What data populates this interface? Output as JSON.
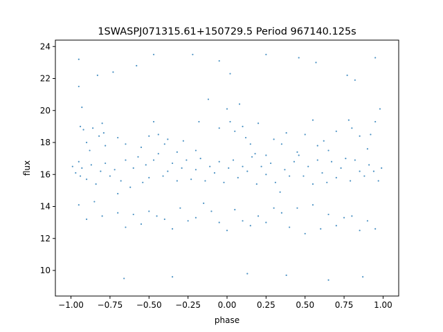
{
  "chart_data": {
    "type": "scatter",
    "title": "1SWASPJ071315.61+150729.5 Period 967140.125s",
    "xlabel": "phase",
    "ylabel": "flux",
    "xlim": [
      -1.1,
      1.1
    ],
    "ylim": [
      8.4,
      24.4
    ],
    "x_ticks": [
      -1.0,
      -0.75,
      -0.5,
      -0.25,
      0.0,
      0.25,
      0.5,
      0.75,
      1.0
    ],
    "x_tick_labels": [
      "−1.00",
      "−0.75",
      "−0.50",
      "−0.25",
      "0.00",
      "0.25",
      "0.50",
      "0.75",
      "1.00"
    ],
    "y_ticks": [
      10,
      12,
      14,
      16,
      18,
      20,
      22,
      24
    ],
    "y_tick_labels": [
      "10",
      "12",
      "14",
      "16",
      "18",
      "20",
      "22",
      "24"
    ],
    "grid": false,
    "marker_color": "#1f77b4",
    "series": [
      {
        "x": [
          -0.99,
          -0.97,
          -0.95,
          -0.94,
          -0.93,
          -0.9,
          -0.87,
          -0.84,
          -0.81,
          -0.78,
          -0.75,
          -0.72,
          -0.7,
          -0.68,
          -0.65,
          -0.62,
          -0.6,
          -0.57,
          -0.54,
          -0.52,
          -0.5,
          -0.47,
          -0.44,
          -0.41,
          -0.38,
          -0.35,
          -0.32,
          -0.29,
          -0.26,
          -0.23,
          -0.2,
          -0.17,
          -0.14,
          -0.11,
          -0.08,
          -0.05,
          -0.02,
          0.01,
          0.04,
          0.07,
          0.1,
          0.13,
          0.16,
          0.19,
          0.22,
          0.25,
          0.28,
          0.31,
          0.34,
          0.37,
          0.4,
          0.43,
          0.46,
          0.49,
          0.52,
          0.55,
          0.58,
          0.61,
          0.64,
          0.67,
          0.7,
          0.73,
          0.76,
          0.79,
          0.82,
          0.85,
          0.88,
          0.91,
          0.94,
          0.97,
          0.99,
          -0.95,
          -0.94,
          -0.93,
          -0.92,
          -0.9,
          -0.88,
          -0.86,
          -0.82,
          -0.8,
          -0.79,
          -0.78,
          -0.7,
          -0.65,
          -0.55,
          -0.5,
          -0.47,
          -0.44,
          -0.4,
          -0.38,
          -0.32,
          -0.28,
          -0.2,
          -0.18,
          -0.12,
          -0.05,
          0.0,
          0.02,
          0.05,
          0.08,
          0.1,
          0.12,
          0.15,
          0.18,
          0.2,
          0.25,
          0.3,
          0.35,
          0.38,
          0.45,
          0.5,
          0.55,
          0.58,
          0.62,
          0.65,
          0.7,
          0.78,
          0.8,
          0.82,
          0.85,
          0.9,
          0.92,
          0.95,
          0.98,
          -0.95,
          -0.9,
          -0.85,
          -0.8,
          -0.7,
          -0.65,
          -0.6,
          -0.55,
          -0.5,
          -0.45,
          -0.4,
          -0.35,
          -0.3,
          -0.25,
          -0.2,
          -0.15,
          -0.1,
          -0.05,
          0.0,
          0.05,
          0.1,
          0.15,
          0.2,
          0.25,
          0.3,
          0.35,
          0.4,
          0.45,
          0.5,
          0.55,
          0.6,
          0.65,
          0.7,
          0.75,
          0.8,
          0.85,
          0.9,
          0.95,
          -0.95,
          -0.83,
          -0.73,
          -0.66,
          -0.58,
          -0.47,
          -0.35,
          -0.22,
          -0.05,
          0.02,
          0.13,
          0.25,
          0.38,
          0.46,
          0.57,
          0.65,
          0.77,
          0.87,
          0.95
        ],
        "y": [
          16.5,
          16.1,
          16.8,
          15.9,
          16.4,
          15.7,
          16.6,
          15.4,
          16.2,
          16.7,
          15.9,
          16.3,
          14.8,
          15.6,
          16.9,
          15.2,
          16.4,
          17.1,
          15.5,
          16.6,
          15.8,
          16.9,
          17.3,
          15.9,
          16.2,
          16.7,
          15.6,
          16.4,
          16.9,
          15.7,
          16.3,
          17.0,
          15.6,
          16.5,
          16.1,
          16.8,
          15.5,
          16.4,
          16.9,
          15.8,
          16.5,
          16.2,
          17.1,
          15.4,
          16.5,
          16.0,
          16.7,
          15.5,
          14.9,
          16.3,
          15.9,
          16.8,
          17.2,
          15.9,
          16.5,
          15.4,
          16.9,
          16.1,
          15.5,
          16.8,
          15.8,
          16.4,
          17.0,
          15.6,
          16.9,
          16.2,
          15.9,
          16.6,
          16.2,
          15.6,
          16.4,
          21.5,
          19.0,
          20.2,
          18.8,
          18.0,
          17.5,
          18.9,
          18.4,
          19.2,
          18.6,
          17.8,
          18.3,
          17.9,
          17.7,
          18.4,
          19.3,
          18.5,
          17.9,
          18.2,
          17.4,
          18.1,
          17.5,
          19.3,
          20.7,
          18.9,
          20.1,
          19.3,
          18.7,
          20.4,
          19.0,
          18.3,
          17.9,
          17.3,
          19.2,
          17.2,
          18.2,
          17.9,
          18.6,
          17.4,
          18.5,
          19.4,
          17.8,
          18.1,
          17.5,
          18.7,
          19.4,
          18.9,
          21.9,
          18.4,
          17.6,
          18.5,
          19.3,
          20.1,
          14.1,
          13.2,
          14.3,
          13.4,
          13.6,
          12.7,
          13.5,
          12.9,
          13.7,
          13.4,
          13.2,
          12.6,
          13.9,
          13.1,
          13.3,
          14.2,
          13.7,
          13.0,
          12.5,
          13.8,
          13.1,
          12.8,
          13.4,
          13.0,
          13.9,
          13.6,
          12.7,
          13.9,
          12.3,
          14.1,
          12.6,
          13.5,
          12.8,
          13.3,
          13.4,
          12.5,
          13.1,
          12.6,
          23.2,
          22.2,
          22.4,
          9.5,
          22.8,
          23.5,
          9.6,
          23.5,
          23.1,
          22.3,
          9.8,
          23.5,
          9.7,
          23.3,
          23.0,
          9.4,
          22.2,
          9.6,
          23.3
        ]
      }
    ]
  }
}
